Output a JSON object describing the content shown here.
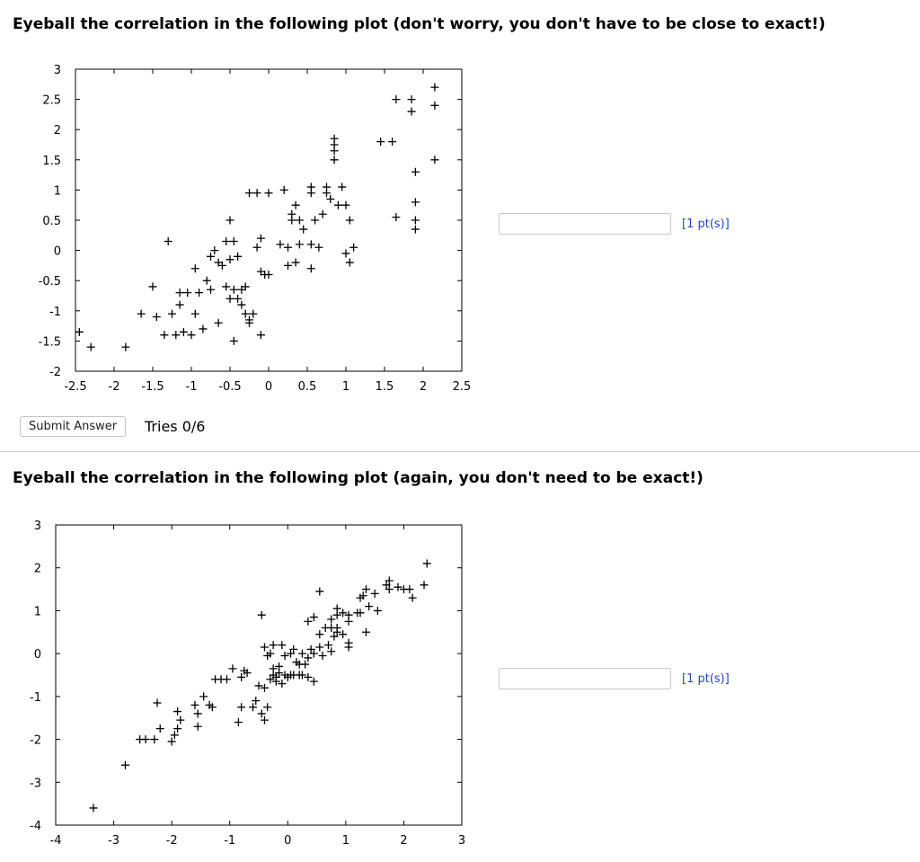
{
  "question1": {
    "prompt": "Eyeball the correlation in the following plot (don't worry, you don't have to be close to exact!)",
    "points_label": "[1 pt(s)]",
    "answer_value": "",
    "submit_label": "Submit Answer",
    "tries": "Tries 0/6"
  },
  "question2": {
    "prompt": "Eyeball the correlation in the following plot (again, you don't need to be exact!)",
    "points_label": "[1 pt(s)]",
    "answer_value": ""
  },
  "chart_data": [
    {
      "type": "scatter",
      "marker": "plus",
      "xlim": [
        -2.5,
        2.5
      ],
      "ylim": [
        -2,
        3
      ],
      "xticks": [
        "-2.5",
        "-2",
        "-1.5",
        "-1",
        "-0.5",
        "0",
        "0.5",
        "1",
        "1.5",
        "2",
        "2.5"
      ],
      "yticks": [
        "-2",
        "-1.5",
        "-1",
        "-0.5",
        "0",
        "0.5",
        "1",
        "1.5",
        "2",
        "2.5",
        "3"
      ],
      "xtick_values": [
        -2.5,
        -2,
        -1.5,
        -1,
        -0.5,
        0,
        0.5,
        1,
        1.5,
        2,
        2.5
      ],
      "ytick_values": [
        -2,
        -1.5,
        -1,
        -0.5,
        0,
        0.5,
        1,
        1.5,
        2,
        2.5,
        3
      ],
      "points": [
        [
          -2.45,
          -1.35
        ],
        [
          -2.3,
          -1.6
        ],
        [
          -1.85,
          -1.6
        ],
        [
          -1.65,
          -1.05
        ],
        [
          -1.45,
          -1.1
        ],
        [
          -1.5,
          -0.6
        ],
        [
          -1.35,
          -1.4
        ],
        [
          -1.25,
          -1.05
        ],
        [
          -1.2,
          -1.4
        ],
        [
          -1.1,
          -1.35
        ],
        [
          -1.15,
          -0.9
        ],
        [
          -1.15,
          -0.7
        ],
        [
          -1.05,
          -0.7
        ],
        [
          -1.0,
          -1.4
        ],
        [
          -0.95,
          -1.05
        ],
        [
          -0.9,
          -0.7
        ],
        [
          -0.85,
          -1.3
        ],
        [
          -0.8,
          -0.5
        ],
        [
          -0.75,
          -0.65
        ],
        [
          -0.65,
          -1.2
        ],
        [
          -0.95,
          -0.3
        ],
        [
          -0.75,
          -0.1
        ],
        [
          -0.7,
          0.0
        ],
        [
          -0.65,
          -0.2
        ],
        [
          -0.6,
          -0.25
        ],
        [
          -0.55,
          0.15
        ],
        [
          -0.5,
          0.5
        ],
        [
          -0.5,
          -0.15
        ],
        [
          -0.45,
          0.15
        ],
        [
          -0.4,
          -0.1
        ],
        [
          -0.55,
          -0.6
        ],
        [
          -0.45,
          -0.65
        ],
        [
          -0.35,
          -0.65
        ],
        [
          -0.5,
          -0.8
        ],
        [
          -0.4,
          -0.8
        ],
        [
          -0.35,
          -0.9
        ],
        [
          -0.3,
          -0.6
        ],
        [
          -0.45,
          -1.5
        ],
        [
          -0.3,
          -1.05
        ],
        [
          -0.25,
          -1.2
        ],
        [
          -0.25,
          -1.15
        ],
        [
          -0.2,
          -1.05
        ],
        [
          -0.1,
          -1.4
        ],
        [
          -0.15,
          0.05
        ],
        [
          -0.1,
          0.2
        ],
        [
          -0.1,
          -0.35
        ],
        [
          -0.05,
          -0.4
        ],
        [
          0.0,
          -0.4
        ],
        [
          -1.3,
          0.15
        ],
        [
          0.15,
          0.1
        ],
        [
          0.25,
          0.05
        ],
        [
          0.3,
          0.6
        ],
        [
          0.35,
          0.75
        ],
        [
          0.4,
          0.5
        ],
        [
          0.45,
          0.35
        ],
        [
          0.3,
          0.5
        ],
        [
          0.25,
          -0.25
        ],
        [
          0.35,
          -0.2
        ],
        [
          0.55,
          -0.3
        ],
        [
          0.4,
          0.1
        ],
        [
          0.55,
          0.1
        ],
        [
          0.65,
          0.05
        ],
        [
          0.6,
          0.5
        ],
        [
          0.7,
          0.6
        ],
        [
          0.75,
          0.95
        ],
        [
          0.55,
          0.95
        ],
        [
          0.8,
          0.85
        ],
        [
          0.55,
          1.05
        ],
        [
          0.75,
          1.05
        ],
        [
          0.95,
          1.05
        ],
        [
          0.9,
          0.75
        ],
        [
          1.0,
          0.75
        ],
        [
          1.05,
          0.5
        ],
        [
          1.1,
          0.05
        ],
        [
          1.0,
          -0.05
        ],
        [
          1.05,
          -0.2
        ],
        [
          0.85,
          1.65
        ],
        [
          0.85,
          1.75
        ],
        [
          0.85,
          1.85
        ],
        [
          0.85,
          1.5
        ],
        [
          -0.25,
          0.95
        ],
        [
          -0.15,
          0.95
        ],
        [
          0,
          0.95
        ],
        [
          0.2,
          1.0
        ],
        [
          1.45,
          1.8
        ],
        [
          1.6,
          1.8
        ],
        [
          1.65,
          2.5
        ],
        [
          1.85,
          2.5
        ],
        [
          1.85,
          2.3
        ],
        [
          2.15,
          2.7
        ],
        [
          2.15,
          2.4
        ],
        [
          2.15,
          1.5
        ],
        [
          1.9,
          1.3
        ],
        [
          1.9,
          0.8
        ],
        [
          1.9,
          0.5
        ],
        [
          1.9,
          0.35
        ],
        [
          1.65,
          0.55
        ]
      ]
    },
    {
      "type": "scatter",
      "marker": "plus",
      "xlim": [
        -4,
        3
      ],
      "ylim": [
        -4,
        3
      ],
      "xticks": [
        "-4",
        "-3",
        "-2",
        "-1",
        "0",
        "1",
        "2",
        "3"
      ],
      "yticks": [
        "-4",
        "-3",
        "-2",
        "-1",
        "0",
        "1",
        "2",
        "3"
      ],
      "xtick_values": [
        -4,
        -3,
        -2,
        -1,
        0,
        1,
        2,
        3
      ],
      "ytick_values": [
        -4,
        -3,
        -2,
        -1,
        0,
        1,
        2,
        3
      ],
      "points": [
        [
          -3.35,
          -3.6
        ],
        [
          -2.8,
          -2.6
        ],
        [
          -2.55,
          -2.0
        ],
        [
          -2.45,
          -2.0
        ],
        [
          -2.3,
          -2.0
        ],
        [
          -2.25,
          -1.15
        ],
        [
          -2.2,
          -1.75
        ],
        [
          -2.0,
          -2.05
        ],
        [
          -1.95,
          -1.9
        ],
        [
          -1.9,
          -1.75
        ],
        [
          -1.9,
          -1.35
        ],
        [
          -1.85,
          -1.55
        ],
        [
          -1.55,
          -1.7
        ],
        [
          -1.6,
          -1.2
        ],
        [
          -1.55,
          -1.4
        ],
        [
          -1.45,
          -1.0
        ],
        [
          -1.35,
          -1.2
        ],
        [
          -1.3,
          -1.25
        ],
        [
          -1.25,
          -0.6
        ],
        [
          -1.15,
          -0.6
        ],
        [
          -1.05,
          -0.6
        ],
        [
          -0.95,
          -0.35
        ],
        [
          -0.8,
          -0.55
        ],
        [
          -0.85,
          -1.6
        ],
        [
          -0.8,
          -1.25
        ],
        [
          -0.75,
          -0.4
        ],
        [
          -0.7,
          -0.45
        ],
        [
          -0.6,
          -1.25
        ],
        [
          -0.55,
          -1.1
        ],
        [
          -0.45,
          -1.4
        ],
        [
          -0.4,
          -0.8
        ],
        [
          -0.4,
          -1.55
        ],
        [
          -0.35,
          -1.25
        ],
        [
          -0.5,
          -0.75
        ],
        [
          -0.25,
          -0.35
        ],
        [
          -0.25,
          -0.5
        ],
        [
          -0.2,
          -0.55
        ],
        [
          -0.2,
          -0.65
        ],
        [
          -0.15,
          -0.45
        ],
        [
          -0.15,
          -0.3
        ],
        [
          -0.3,
          -0.6
        ],
        [
          -0.1,
          -0.7
        ],
        [
          -0.05,
          -0.5
        ],
        [
          0.0,
          -0.55
        ],
        [
          0.05,
          -0.5
        ],
        [
          0.1,
          -0.5
        ],
        [
          0.2,
          -0.5
        ],
        [
          0.25,
          -0.5
        ],
        [
          0.35,
          -0.55
        ],
        [
          0.45,
          -0.65
        ],
        [
          -0.4,
          0.15
        ],
        [
          -0.35,
          -0.05
        ],
        [
          -0.3,
          0.0
        ],
        [
          -0.25,
          0.2
        ],
        [
          -0.1,
          0.2
        ],
        [
          -0.05,
          -0.05
        ],
        [
          0.05,
          0.0
        ],
        [
          0.1,
          0.1
        ],
        [
          0.15,
          -0.2
        ],
        [
          0.2,
          -0.25
        ],
        [
          0.25,
          0.0
        ],
        [
          0.3,
          -0.25
        ],
        [
          0.35,
          -0.1
        ],
        [
          0.4,
          0.1
        ],
        [
          0.45,
          0.0
        ],
        [
          0.55,
          0.15
        ],
        [
          0.55,
          0.45
        ],
        [
          0.6,
          -0.05
        ],
        [
          0.75,
          0.05
        ],
        [
          0.8,
          0.4
        ],
        [
          0.85,
          0.5
        ],
        [
          0.95,
          0.45
        ],
        [
          0.95,
          0.95
        ],
        [
          1.05,
          0.25
        ],
        [
          1.05,
          0.15
        ],
        [
          0.7,
          0.2
        ],
        [
          0.65,
          0.6
        ],
        [
          0.75,
          0.6
        ],
        [
          0.75,
          0.8
        ],
        [
          0.85,
          0.6
        ],
        [
          0.35,
          0.75
        ],
        [
          0.45,
          0.85
        ],
        [
          0.85,
          1.05
        ],
        [
          0.85,
          0.9
        ],
        [
          1.05,
          0.9
        ],
        [
          1.05,
          0.75
        ],
        [
          1.2,
          0.95
        ],
        [
          1.25,
          0.95
        ],
        [
          1.25,
          1.3
        ],
        [
          1.3,
          1.35
        ],
        [
          1.35,
          1.5
        ],
        [
          1.4,
          1.1
        ],
        [
          1.5,
          1.4
        ],
        [
          1.55,
          1.0
        ],
        [
          1.35,
          0.5
        ],
        [
          0.55,
          1.45
        ],
        [
          1.7,
          1.6
        ],
        [
          1.75,
          1.5
        ],
        [
          1.75,
          1.7
        ],
        [
          1.9,
          1.55
        ],
        [
          2.0,
          1.5
        ],
        [
          2.1,
          1.5
        ],
        [
          2.15,
          1.3
        ],
        [
          2.35,
          1.6
        ],
        [
          2.4,
          2.1
        ],
        [
          -0.45,
          0.9
        ]
      ]
    }
  ]
}
